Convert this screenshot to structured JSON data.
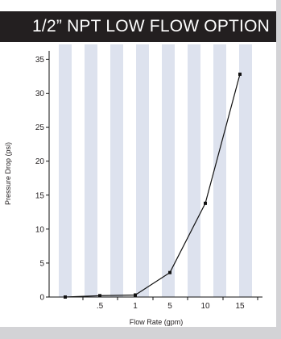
{
  "colors": {
    "banner_bg": "#231f20",
    "banner_text": "#ffffff",
    "stripe": "#dde2ee",
    "frame": "#d3d3d6",
    "line": "#111111",
    "axis": "#111111"
  },
  "chart_data": {
    "type": "line",
    "title": "1/2” NPT LOW FLOW OPTION",
    "xlabel": "Flow Rate (gpm)",
    "ylabel": "Pressure Drop (psi)",
    "x_tick_labels": [
      ".5",
      "1",
      "5",
      "10",
      "15"
    ],
    "y_ticks": [
      0,
      5,
      10,
      15,
      20,
      25,
      30,
      35
    ],
    "ylim": [
      0,
      36
    ],
    "grid": "vertical alternating stripes",
    "series": [
      {
        "x": [
          "",
          ".5",
          "1",
          "5",
          "10",
          "15"
        ],
        "y": [
          0,
          0.2,
          0.3,
          3.6,
          13.8,
          32.8
        ]
      }
    ]
  }
}
